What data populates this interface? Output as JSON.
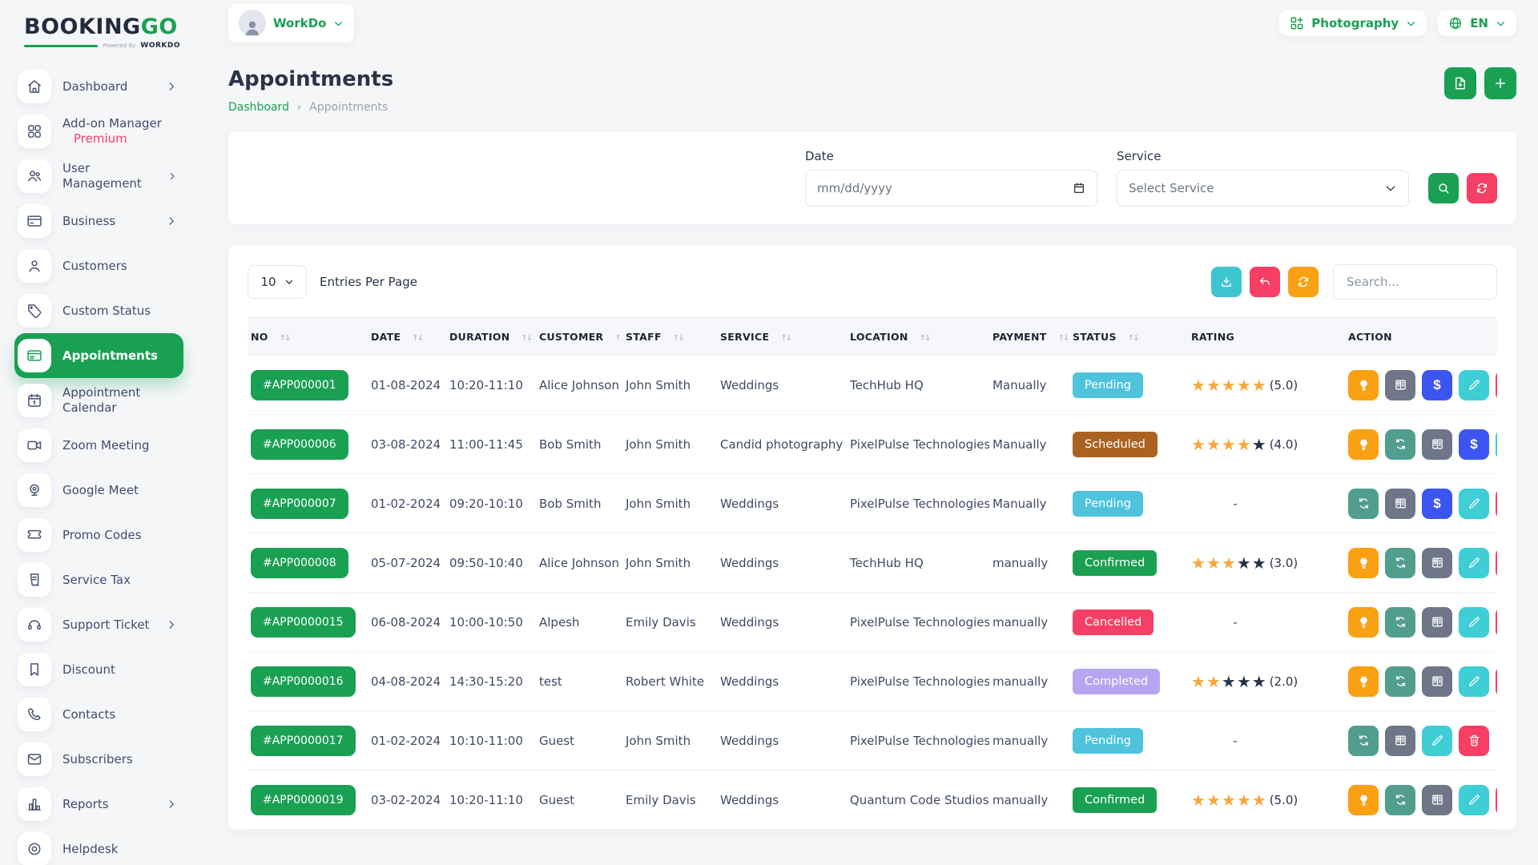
{
  "brand": {
    "name_primary": "BOOKING",
    "name_secondary": "GO",
    "powered_prefix": "Powered By",
    "powered_brand": "WORKDO"
  },
  "topbar": {
    "workspace": {
      "label": "WorkDo"
    },
    "module_switcher": {
      "label": "Photography"
    },
    "language": {
      "label": "EN"
    }
  },
  "sidebar": {
    "items": [
      {
        "label": "Dashboard",
        "icon": "home",
        "chevron": true
      },
      {
        "label": "Add-on Manager",
        "sublabel": "Premium",
        "icon": "grid"
      },
      {
        "label": "User Management",
        "icon": "users",
        "chevron": true
      },
      {
        "label": "Business",
        "icon": "credit-card",
        "chevron": true
      },
      {
        "label": "Customers",
        "icon": "user"
      },
      {
        "label": "Custom Status",
        "icon": "tag"
      },
      {
        "label": "Appointments",
        "icon": "appointment",
        "active": true
      },
      {
        "label": "Appointment Calendar",
        "icon": "calendar"
      },
      {
        "label": "Zoom Meeting",
        "icon": "video"
      },
      {
        "label": "Google Meet",
        "icon": "webcam"
      },
      {
        "label": "Promo Codes",
        "icon": "ticket"
      },
      {
        "label": "Service Tax",
        "icon": "receipt"
      },
      {
        "label": "Support Ticket",
        "icon": "headset",
        "chevron": true
      },
      {
        "label": "Discount",
        "icon": "bookmark"
      },
      {
        "label": "Contacts",
        "icon": "phone"
      },
      {
        "label": "Subscribers",
        "icon": "mail"
      },
      {
        "label": "Reports",
        "icon": "chart",
        "chevron": true
      },
      {
        "label": "Helpdesk",
        "icon": "lifebuoy"
      }
    ]
  },
  "page": {
    "title": "Appointments",
    "breadcrumb": [
      "Dashboard",
      "Appointments"
    ]
  },
  "filters": {
    "date": {
      "label": "Date",
      "placeholder": "mm/dd/yyyy"
    },
    "service": {
      "label": "Service",
      "value": "Select Service"
    }
  },
  "table": {
    "entries_per_page": {
      "value": "10",
      "label": "Entries Per Page"
    },
    "search_placeholder": "Search...",
    "columns": [
      {
        "label": "NO",
        "sortable": true
      },
      {
        "label": "DATE",
        "sortable": true
      },
      {
        "label": "DURATION",
        "sortable": true
      },
      {
        "label": "CUSTOMER",
        "sortable": true
      },
      {
        "label": "STAFF",
        "sortable": true
      },
      {
        "label": "SERVICE",
        "sortable": true
      },
      {
        "label": "LOCATION",
        "sortable": true
      },
      {
        "label": "PAYMENT",
        "sortable": true
      },
      {
        "label": "STATUS",
        "sortable": true
      },
      {
        "label": "RATING",
        "sortable": false
      },
      {
        "label": "ACTION",
        "sortable": false
      }
    ],
    "rows": [
      {
        "no": "#APP000001",
        "date": "01-08-2024",
        "duration": "10:20-11:10",
        "customer": "Alice Johnson",
        "staff": "John Smith",
        "service": "Weddings",
        "location": "TechHub HQ",
        "payment": "Manually",
        "status": "Pending",
        "rating_filled": 5,
        "rating_label": "(5.0)",
        "actions": [
          "bulb",
          "invoice",
          "dollar",
          "pencil"
        ],
        "clipped_action": "trash"
      },
      {
        "no": "#APP000006",
        "date": "03-08-2024",
        "duration": "11:00-11:45",
        "customer": "Bob Smith",
        "staff": "John Smith",
        "service": "Candid photography",
        "location": "PixelPulse Technologies",
        "payment": "Manually",
        "status": "Scheduled",
        "rating_filled": 4,
        "rating_label": "(4.0)",
        "actions": [
          "bulb",
          "sync",
          "invoice",
          "dollar"
        ],
        "clipped_action": "pencil"
      },
      {
        "no": "#APP000007",
        "date": "01-02-2024",
        "duration": "09:20-10:10",
        "customer": "Bob Smith",
        "staff": "John Smith",
        "service": "Weddings",
        "location": "PixelPulse Technologies",
        "payment": "Manually",
        "status": "Pending",
        "rating_filled": null,
        "rating_label": "-",
        "actions": [
          "sync",
          "invoice",
          "dollar",
          "pencil"
        ],
        "clipped_action": "trash"
      },
      {
        "no": "#APP000008",
        "date": "05-07-2024",
        "duration": "09:50-10:40",
        "customer": "Alice Johnson",
        "staff": "John Smith",
        "service": "Weddings",
        "location": "TechHub HQ",
        "payment": "manually",
        "status": "Confirmed",
        "rating_filled": 3,
        "rating_label": "(3.0)",
        "actions": [
          "bulb",
          "sync",
          "invoice",
          "pencil"
        ],
        "clipped_action": "trash"
      },
      {
        "no": "#APP0000015",
        "date": "06-08-2024",
        "duration": "10:00-10:50",
        "customer": "Alpesh",
        "staff": "Emily Davis",
        "service": "Weddings",
        "location": "PixelPulse Technologies",
        "payment": "manually",
        "status": "Cancelled",
        "rating_filled": null,
        "rating_label": "-",
        "actions": [
          "bulb",
          "sync",
          "invoice",
          "pencil"
        ],
        "clipped_action": "trash"
      },
      {
        "no": "#APP0000016",
        "date": "04-08-2024",
        "duration": "14:30-15:20",
        "customer": "test",
        "staff": "Robert White",
        "service": "Weddings",
        "location": "PixelPulse Technologies",
        "payment": "manually",
        "status": "Completed",
        "rating_filled": 2,
        "rating_label": "(2.0)",
        "actions": [
          "bulb",
          "sync",
          "invoice",
          "pencil"
        ],
        "clipped_action": "trash"
      },
      {
        "no": "#APP0000017",
        "date": "01-02-2024",
        "duration": "10:10-11:00",
        "customer": "Guest",
        "staff": "John Smith",
        "service": "Weddings",
        "location": "PixelPulse Technologies",
        "payment": "manually",
        "status": "Pending",
        "rating_filled": null,
        "rating_label": "-",
        "actions": [
          "sync",
          "invoice",
          "pencil",
          "trash"
        ],
        "clipped_action": null
      },
      {
        "no": "#APP0000019",
        "date": "03-02-2024",
        "duration": "10:20-11:10",
        "customer": "Guest",
        "staff": "Emily Davis",
        "service": "Weddings",
        "location": "Quantum Code Studios",
        "payment": "manually",
        "status": "Confirmed",
        "rating_filled": 5,
        "rating_label": "(5.0)",
        "actions": [
          "bulb",
          "sync",
          "invoice",
          "pencil"
        ],
        "clipped_action": "trash"
      }
    ]
  },
  "colors": {
    "primary": "#1aa053",
    "status": {
      "Pending": "#4fc3dc",
      "Scheduled": "#aa6220",
      "Confirmed": "#1aa053",
      "Cancelled": "#f73e64",
      "Completed": "#b7a5f2"
    },
    "actions": {
      "bulb": "#f9a013",
      "sync": "#529e8e",
      "invoice": "#6e7687",
      "dollar": "#3d55f0",
      "pencil": "#3fcdd6",
      "trash": "#f73e64"
    },
    "toolbar": {
      "download": "#3ec6d0",
      "undo": "#f73e64",
      "refresh": "#f9a013"
    },
    "filter_buttons": {
      "search": "#1aa053",
      "reset": "#f73e64"
    },
    "star_filled": "#f9a63c",
    "star_empty": "#273149"
  }
}
